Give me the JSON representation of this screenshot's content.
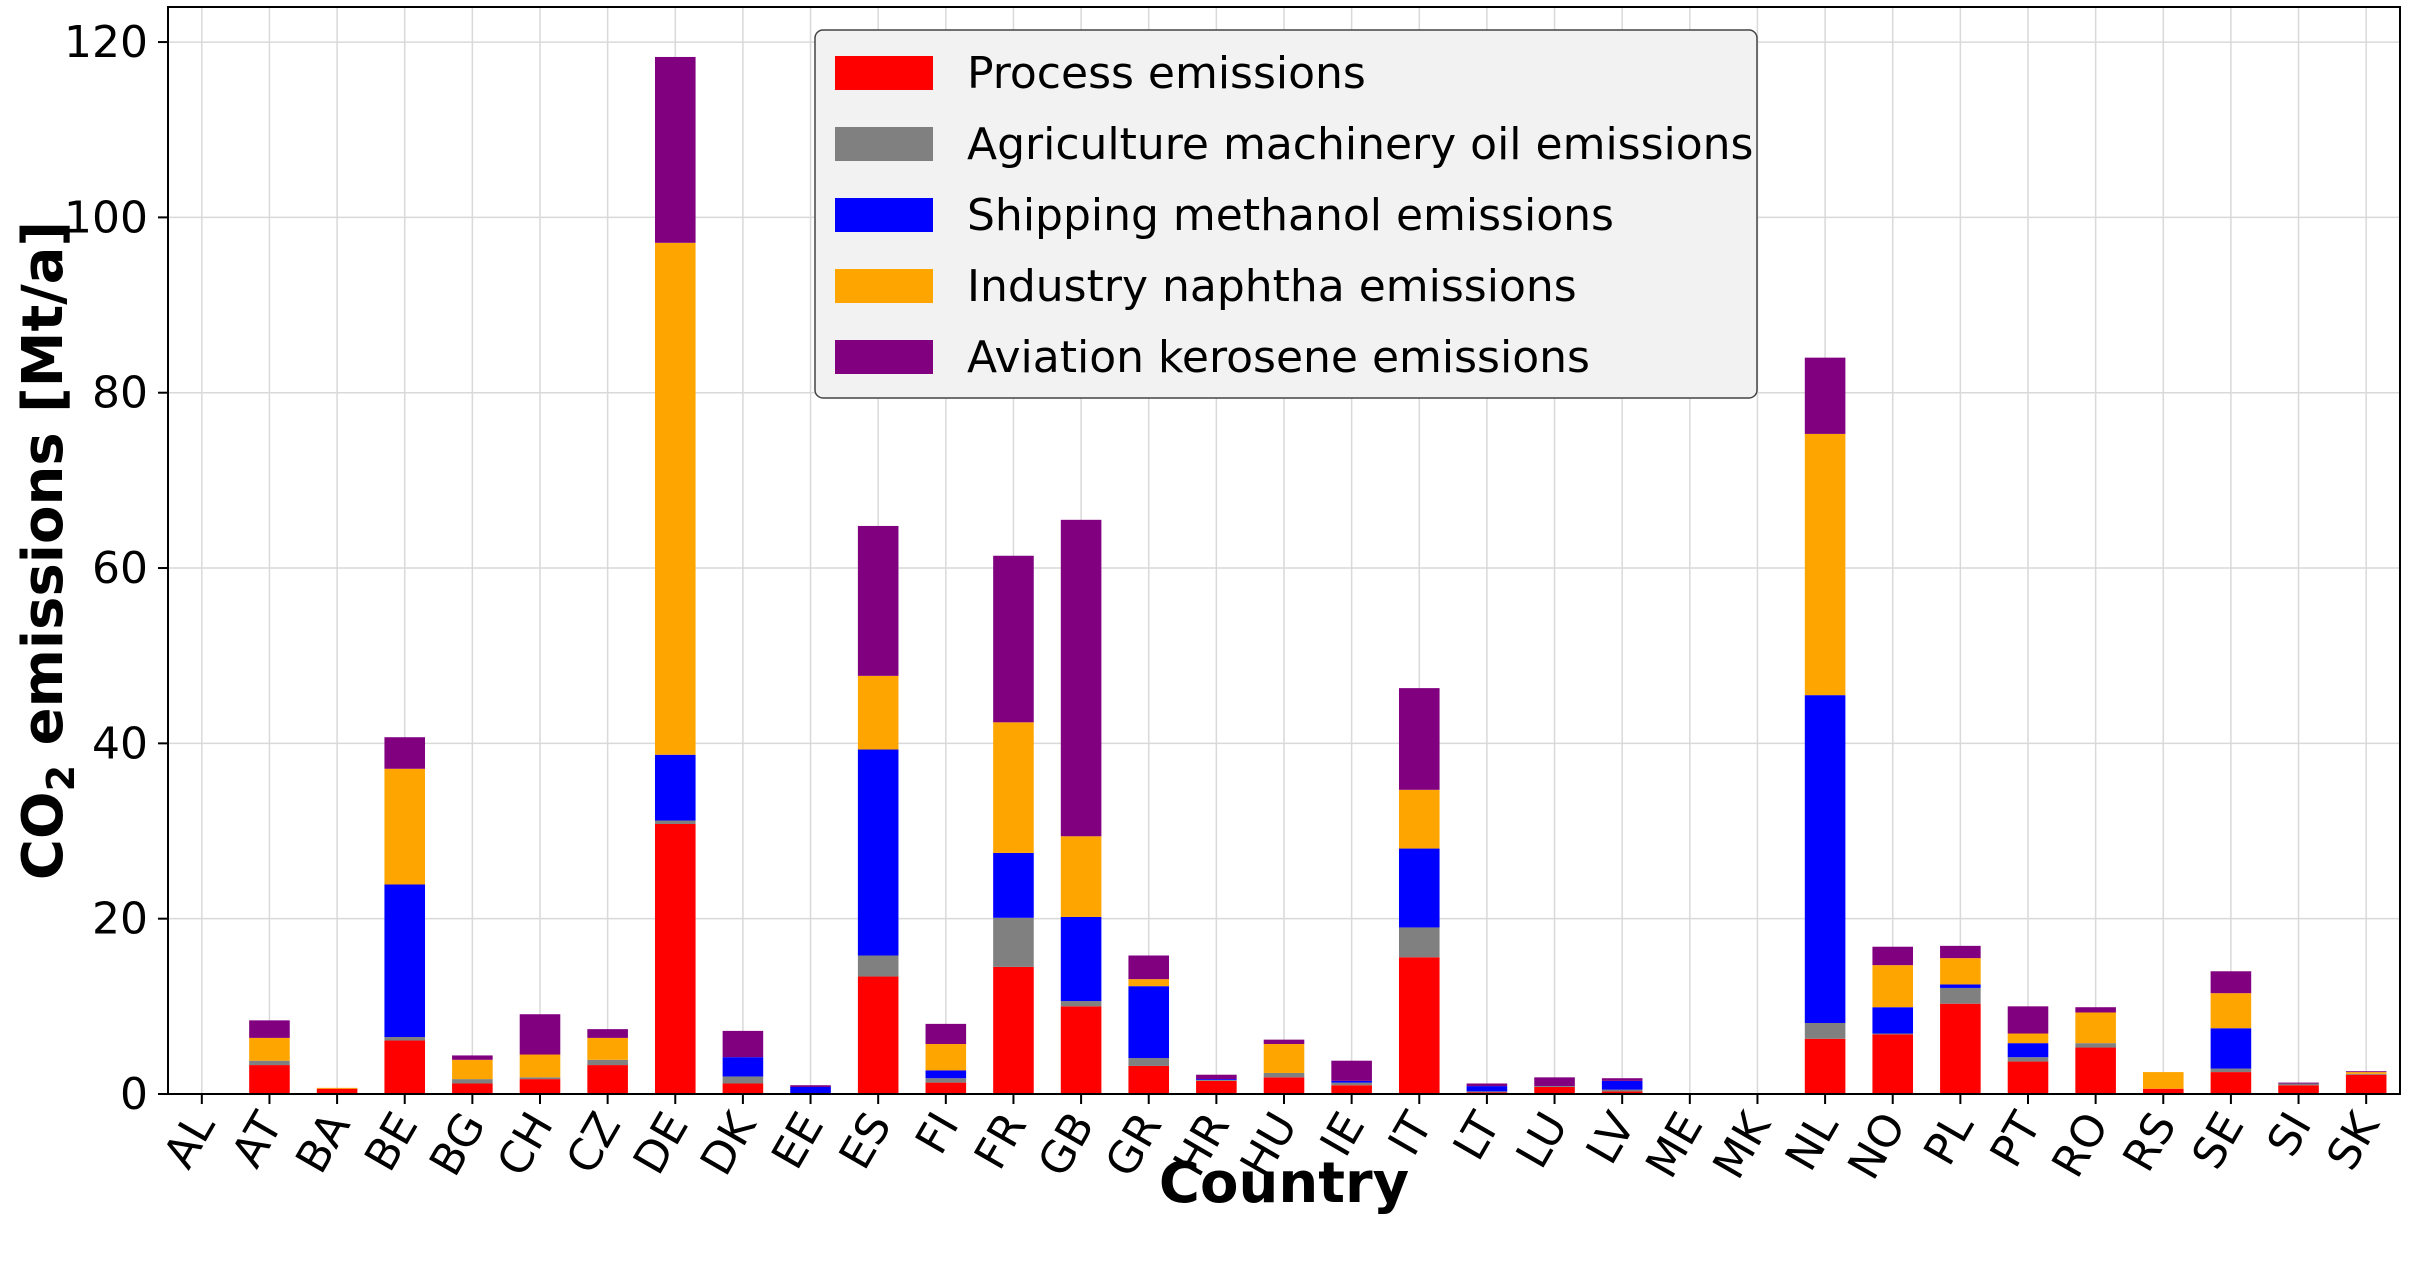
{
  "chart_data": {
    "type": "bar",
    "stacked": true,
    "title": "",
    "xlabel": "Country",
    "ylabel_main": "CO",
    "ylabel_subscript": "2",
    "ylabel_rest": " emissions [Mt/a]",
    "ylim": [
      0,
      124
    ],
    "yticks": [
      0,
      20,
      40,
      60,
      80,
      100,
      120
    ],
    "grid": true,
    "legend_position": "top-center",
    "categories": [
      "AL",
      "AT",
      "BA",
      "BE",
      "BG",
      "CH",
      "CZ",
      "DE",
      "DK",
      "EE",
      "ES",
      "FI",
      "FR",
      "GB",
      "GR",
      "HR",
      "HU",
      "IE",
      "IT",
      "LT",
      "LU",
      "LV",
      "ME",
      "MK",
      "NL",
      "NO",
      "PL",
      "PT",
      "RO",
      "RS",
      "SE",
      "SI",
      "SK"
    ],
    "series": [
      {
        "name": "Process emissions",
        "color": "#ff0000",
        "values": [
          0.1,
          3.3,
          0.6,
          6.1,
          1.2,
          1.7,
          3.3,
          30.8,
          1.2,
          0.1,
          13.4,
          1.3,
          14.5,
          10.0,
          3.2,
          1.5,
          1.9,
          1.0,
          15.6,
          0.2,
          0.8,
          0.3,
          0,
          0,
          6.3,
          6.8,
          10.3,
          3.7,
          5.3,
          0.6,
          2.5,
          1.0,
          2.2
        ]
      },
      {
        "name": "Agriculture machinery oil emissions",
        "color": "#808080",
        "values": [
          0,
          0.5,
          0,
          0.4,
          0.5,
          0.2,
          0.6,
          0.4,
          0.8,
          0,
          2.4,
          0.5,
          5.6,
          0.6,
          0.9,
          0.1,
          0.5,
          0.3,
          3.4,
          0.1,
          0.1,
          0.2,
          0,
          0,
          1.8,
          0.1,
          1.8,
          0.5,
          0.5,
          0,
          0.4,
          0.2,
          0.1
        ]
      },
      {
        "name": "Shipping methanol emissions",
        "color": "#0000ff",
        "values": [
          0,
          0,
          0,
          17.4,
          0,
          0,
          0,
          7.5,
          2.2,
          0.7,
          23.5,
          0.9,
          7.4,
          9.6,
          8.2,
          0.1,
          0,
          0.2,
          9.0,
          0.6,
          0,
          1.0,
          0,
          0,
          37.4,
          3.0,
          0.4,
          1.6,
          0,
          0,
          4.6,
          0,
          0
        ]
      },
      {
        "name": "Industry naphtha emissions",
        "color": "#ffa500",
        "values": [
          0,
          2.6,
          0.1,
          13.2,
          2.2,
          2.6,
          2.5,
          58.4,
          0,
          0,
          8.4,
          3.0,
          14.9,
          9.2,
          0.8,
          0,
          3.3,
          0,
          6.7,
          0,
          0,
          0,
          0,
          0,
          29.8,
          4.8,
          3.0,
          1.1,
          3.5,
          1.9,
          4.0,
          0,
          0.2
        ]
      },
      {
        "name": "Aviation kerosene emissions",
        "color": "#800080",
        "values": [
          0,
          2.0,
          0,
          3.6,
          0.5,
          4.6,
          1.0,
          21.2,
          3.0,
          0.2,
          17.1,
          2.3,
          19.0,
          36.1,
          2.7,
          0.5,
          0.5,
          2.3,
          11.6,
          0.3,
          1.0,
          0.3,
          0,
          0,
          8.7,
          2.1,
          1.4,
          3.1,
          0.6,
          0,
          2.5,
          0.1,
          0.1
        ]
      }
    ]
  }
}
